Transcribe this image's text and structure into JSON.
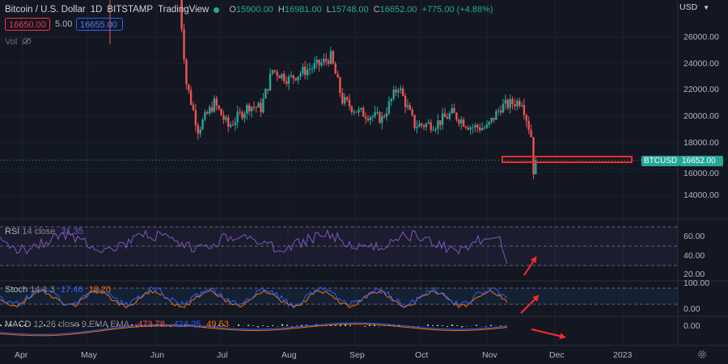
{
  "header": {
    "symbol_title": "Bitcoin / U.S. Dollar",
    "interval": "1D",
    "exchange": "BITSTAMP",
    "platform": "TradingView",
    "ohlc": [
      {
        "key": "O",
        "value": "15900.00"
      },
      {
        "key": "H",
        "value": "16981.00"
      },
      {
        "key": "L",
        "value": "15748.00"
      },
      {
        "key": "C",
        "value": "16652.00"
      }
    ],
    "change": "+775.00 (+4.88%)"
  },
  "trade": {
    "sell_price": "16650.00",
    "spread": "5.00",
    "buy_price": "16655.00"
  },
  "volume_label": "Vol",
  "price_axis": {
    "currency": "USD",
    "ticks": [
      "26000.00",
      "24000.00",
      "22000.00",
      "20000.00",
      "18000.00",
      "16000.00",
      "14000.00"
    ],
    "symbol_tag": "BTCUSD",
    "last_price_tag": "16652.00"
  },
  "rsi": {
    "name": "RSI",
    "params": "14 close",
    "value": "31.35",
    "ticks": [
      "60.00",
      "40.00",
      "20.00"
    ]
  },
  "stoch": {
    "name": "Stoch",
    "params": "14 1 3",
    "k_value": "17.46",
    "d_value": "18.20",
    "ticks": [
      "100.00",
      "0.00"
    ]
  },
  "macd": {
    "name": "MACD",
    "params": "12 26 close 9 EMA EMA",
    "hist_value": "-473.78",
    "macd_value": "-424.25",
    "signal_value": "49.53",
    "ticks": [
      "0.00"
    ]
  },
  "time_axis": [
    "Apr",
    "May",
    "Jun",
    "Jul",
    "Aug",
    "Sep",
    "Oct",
    "Nov",
    "Dec",
    "2023"
  ],
  "colors": {
    "background": "#131722",
    "up": "#26a69a",
    "down": "#ef5350",
    "rsi_line": "#7e57c2",
    "stoch_k": "#2962ff",
    "stoch_d": "#ff6d00",
    "annotation": "#ff2b2b"
  },
  "chart_data": {
    "type": "candlestick",
    "series": [
      {
        "name": "BTCUSD",
        "close_path": [
          [
            "2022-06-10",
            29000
          ],
          [
            "2022-06-13",
            22500
          ],
          [
            "2022-06-18",
            19000
          ],
          [
            "2022-06-25",
            21000
          ],
          [
            "2022-07-01",
            19200
          ],
          [
            "2022-07-10",
            20800
          ],
          [
            "2022-07-15",
            20600
          ],
          [
            "2022-07-20",
            23500
          ],
          [
            "2022-07-27",
            22800
          ],
          [
            "2022-08-01",
            23300
          ],
          [
            "2022-08-10",
            24000
          ],
          [
            "2022-08-14",
            24500
          ],
          [
            "2022-08-19",
            21200
          ],
          [
            "2022-08-26",
            20300
          ],
          [
            "2022-09-05",
            19800
          ],
          [
            "2022-09-12",
            22300
          ],
          [
            "2022-09-19",
            19300
          ],
          [
            "2022-09-28",
            19400
          ],
          [
            "2022-10-05",
            20200
          ],
          [
            "2022-10-13",
            19200
          ],
          [
            "2022-10-20",
            19100
          ],
          [
            "2022-10-26",
            20700
          ],
          [
            "2022-11-04",
            21200
          ],
          [
            "2022-11-08",
            18500
          ],
          [
            "2022-11-09",
            15900
          ],
          [
            "2022-11-10",
            16652
          ]
        ]
      }
    ],
    "ylim": [
      13000,
      27500
    ],
    "annotations": [
      "highlight box at 16652 level",
      "arrows pointing at RSI, Stoch and MACD panes"
    ]
  }
}
